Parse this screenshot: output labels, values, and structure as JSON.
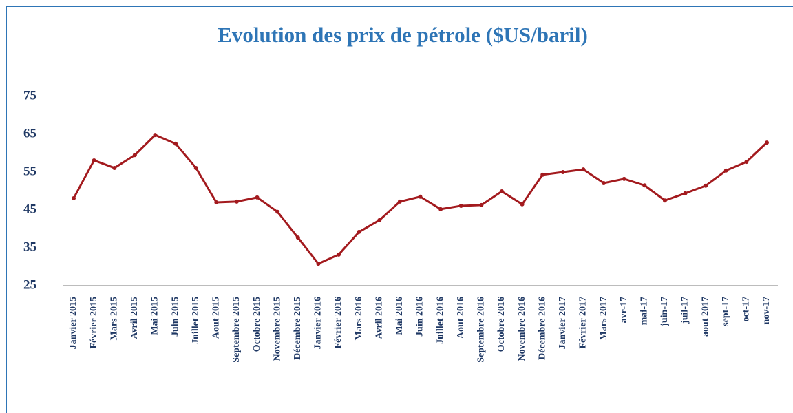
{
  "chart_data": {
    "type": "line",
    "title": "Evolution des prix de pétrole ($US/baril)",
    "categories": [
      "Janvier 2015",
      "Février 2015",
      "Mars 2015",
      "Avril 2015",
      "Mai 2015",
      "Juin 2015",
      "Juillet 2015",
      "Aout 2015",
      "Septembre 2015",
      "Octobre 2015",
      "Novembre 2015",
      "Décembre 2015",
      "Janvier 2016",
      "Février 2016",
      "Mars 2016",
      "Avril 2016",
      "Mai 2016",
      "Juin 2016",
      "Juillet 2016",
      "Aout 2016",
      "Septembre 2016",
      "Octobre 2016",
      "Novembre 2016",
      "Décembre 2016",
      "Janvier 2017",
      "Février 2017",
      "Mars 2017",
      "avr-17",
      "mai-17",
      "juin-17",
      "juil-17",
      "aout 2017",
      "sept-17",
      "oct-17",
      "nov-17"
    ],
    "values": [
      48.1,
      58.1,
      56.1,
      59.5,
      64.8,
      62.5,
      56.1,
      47.0,
      47.2,
      48.3,
      44.5,
      37.7,
      30.8,
      33.2,
      39.2,
      42.3,
      47.2,
      48.5,
      45.2,
      46.1,
      46.3,
      49.9,
      46.5,
      54.3,
      55.0,
      55.7,
      52.1,
      53.2,
      51.5,
      47.5,
      49.4,
      51.4,
      55.4,
      57.7,
      62.8
    ],
    "color": "#a31a1e",
    "ylim": [
      25,
      75
    ],
    "yticks": [
      25,
      35,
      45,
      55,
      65,
      75
    ],
    "grid": false
  }
}
